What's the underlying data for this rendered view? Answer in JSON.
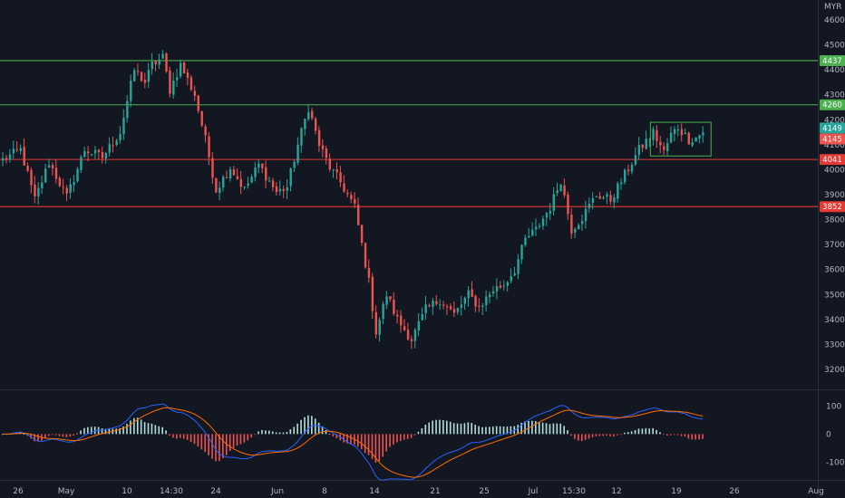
{
  "chart_data": [
    {
      "type": "candlestick",
      "currency_label": "MYR",
      "ylim": [
        3150,
        4650
      ],
      "y_ticks": [
        3200,
        3300,
        3400,
        3500,
        3600,
        3700,
        3800,
        3900,
        4000,
        4100,
        4200,
        4300,
        4400,
        4500,
        4600
      ],
      "x_ticks": [
        "26",
        "May",
        "10",
        "14:30",
        "24",
        "Jun",
        "8",
        "14",
        "21",
        "25",
        "Jul",
        "15:30",
        "12",
        "19",
        "26",
        "Aug"
      ],
      "horizontal_levels": [
        {
          "value": 4437,
          "label": "4437",
          "color": "#4caf50"
        },
        {
          "value": 4260,
          "label": "4260",
          "color": "#4caf50"
        },
        {
          "value": 4041,
          "label": "4041",
          "color": "#e53935"
        },
        {
          "value": 3852,
          "label": "3852",
          "color": "#e53935"
        }
      ],
      "price_tags": [
        {
          "value": 4149,
          "label": "4149",
          "color": "#26a69a"
        },
        {
          "value": 4145,
          "label": "4145",
          "color": "#ef5350"
        }
      ],
      "consolidation_box": {
        "from_index": 183,
        "to_index": 197,
        "low": 4055,
        "high": 4190,
        "color": "#4caf50"
      },
      "anchors": [
        [
          0,
          4040
        ],
        [
          5,
          4080
        ],
        [
          9,
          3880
        ],
        [
          13,
          4030
        ],
        [
          18,
          3890
        ],
        [
          23,
          4080
        ],
        [
          28,
          4050
        ],
        [
          33,
          4150
        ],
        [
          37,
          4400
        ],
        [
          40,
          4350
        ],
        [
          42,
          4420
        ],
        [
          45,
          4450
        ],
        [
          47,
          4320
        ],
        [
          50,
          4420
        ],
        [
          54,
          4300
        ],
        [
          57,
          4120
        ],
        [
          60,
          3920
        ],
        [
          64,
          4010
        ],
        [
          68,
          3920
        ],
        [
          72,
          4020
        ],
        [
          77,
          3910
        ],
        [
          80,
          3930
        ],
        [
          83,
          4100
        ],
        [
          86,
          4250
        ],
        [
          89,
          4100
        ],
        [
          92,
          4010
        ],
        [
          95,
          3950
        ],
        [
          99,
          3850
        ],
        [
          103,
          3550
        ],
        [
          105,
          3350
        ],
        [
          108,
          3500
        ],
        [
          111,
          3400
        ],
        [
          115,
          3320
        ],
        [
          119,
          3440
        ],
        [
          123,
          3480
        ],
        [
          127,
          3420
        ],
        [
          131,
          3500
        ],
        [
          134,
          3450
        ],
        [
          138,
          3520
        ],
        [
          141,
          3540
        ],
        [
          144,
          3600
        ],
        [
          147,
          3720
        ],
        [
          150,
          3760
        ],
        [
          154,
          3850
        ],
        [
          157,
          3960
        ],
        [
          160,
          3760
        ],
        [
          163,
          3810
        ],
        [
          167,
          3900
        ],
        [
          171,
          3880
        ],
        [
          175,
          3980
        ],
        [
          179,
          4080
        ],
        [
          183,
          4150
        ],
        [
          186,
          4070
        ],
        [
          188,
          4140
        ],
        [
          190,
          4170
        ],
        [
          193,
          4120
        ],
        [
          195,
          4130
        ],
        [
          197,
          4149
        ]
      ],
      "candle_count": 198,
      "up_color": "#26a69a",
      "down_color": "#ef5350"
    },
    {
      "type": "macd",
      "ylim": [
        -150,
        130
      ],
      "y_ticks": [
        100,
        0,
        -100
      ],
      "macd_color": "#2962ff",
      "signal_color": "#ff6d00",
      "hist_up_color": "#b2dfdb",
      "hist_down_color": "#ef5350"
    }
  ]
}
